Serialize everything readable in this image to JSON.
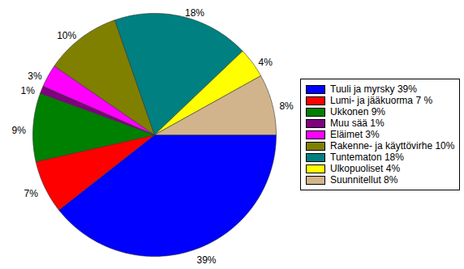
{
  "chart_data": {
    "type": "pie",
    "categories": [
      "Tuuli ja myrsky 39%",
      "Lumi- ja jääkuorma 7 %",
      "Ukkonen 9%",
      "Muu sää 1%",
      "Eläimet 3%",
      "Rakenne- ja käyttövirhe 10%",
      "Tuntematon 18%",
      "Ulkopuoliset 4%",
      "Suunnitellut 8%"
    ],
    "values": [
      39,
      7,
      9,
      1,
      3,
      10,
      18,
      4,
      8
    ],
    "value_labels": [
      "39%",
      "7%",
      "9%",
      "1%",
      "3%",
      "10%",
      "18%",
      "4%",
      "8%"
    ],
    "colors": [
      "#0000ff",
      "#ff0000",
      "#008000",
      "#800080",
      "#ff00ff",
      "#808000",
      "#008080",
      "#ffff00",
      "#d2b48c"
    ],
    "data_labels": true,
    "legend": "right"
  }
}
